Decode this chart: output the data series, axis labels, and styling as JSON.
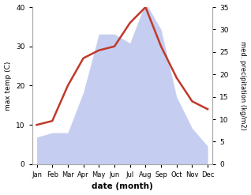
{
  "months": [
    "Jan",
    "Feb",
    "Mar",
    "Apr",
    "May",
    "Jun",
    "Jul",
    "Aug",
    "Sep",
    "Oct",
    "Nov",
    "Dec"
  ],
  "temperature": [
    10,
    11,
    20,
    27,
    29,
    30,
    36,
    40,
    30,
    22,
    16,
    14
  ],
  "precipitation": [
    6,
    7,
    7,
    16,
    29,
    29,
    27,
    36,
    30,
    15,
    8,
    4
  ],
  "temp_ylim": [
    0,
    40
  ],
  "precip_ylim": [
    0,
    35
  ],
  "temp_color": "#c0392b",
  "precip_fill_color": "#c5cef0",
  "xlabel": "date (month)",
  "ylabel_left": "max temp (C)",
  "ylabel_right": "med. precipitation (kg/m2)",
  "bg_color": "#ffffff",
  "x_tick_labels": [
    "Jan",
    "Feb",
    "Mar",
    "Apr",
    "May",
    "Jun",
    "Jul",
    "Aug",
    "Sep",
    "Oct",
    "Nov",
    "Dec"
  ]
}
